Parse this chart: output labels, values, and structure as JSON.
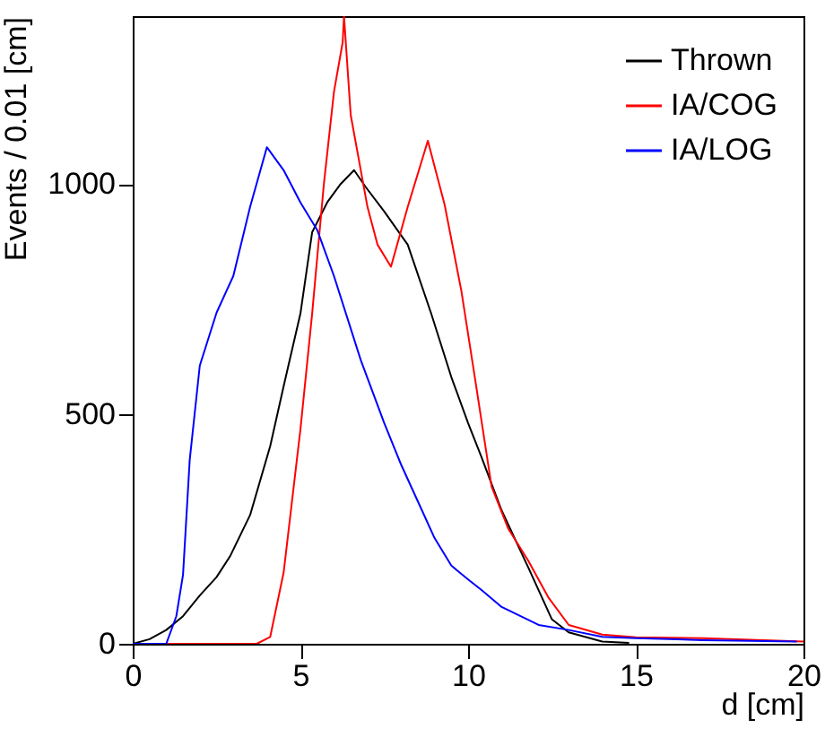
{
  "chart_data": {
    "type": "line",
    "xlabel": "d [cm]",
    "ylabel": "Events / 0.01 [cm]",
    "xlim": [
      0,
      20
    ],
    "ylim": [
      0,
      1365
    ],
    "xticks": [
      0,
      5,
      10,
      15,
      20
    ],
    "yticks": [
      0,
      500,
      {
        "value": 1000,
        "label": "1000"
      }
    ],
    "grid": false,
    "legend": "top right",
    "marker": "none",
    "line_style": "solid",
    "series": [
      {
        "name": "Thrown",
        "color": "#000000",
        "x": [
          0,
          0.5,
          1,
          1.5,
          2,
          2.5,
          2.9,
          3.5,
          4.1,
          4.5,
          5,
          5.35,
          5.8,
          6.2,
          6.6,
          6.95,
          7.5,
          8.2,
          8.9,
          9.5,
          10,
          10.4,
          11,
          11.8,
          12.5,
          13,
          14,
          14.8
        ],
        "values": [
          0,
          10,
          30,
          60,
          105,
          145,
          190,
          280,
          430,
          560,
          718,
          895,
          960,
          1000,
          1030,
          993,
          940,
          868,
          718,
          580,
          480,
          406,
          290,
          165,
          53,
          25,
          5,
          2
        ]
      },
      {
        "name": "IA/COG",
        "color": "#ff0000",
        "x": [
          0,
          3.7,
          4.1,
          4.5,
          5,
          5.35,
          5.7,
          6,
          6.26,
          6.3,
          6.5,
          7,
          7.3,
          7.7,
          8.2,
          8.8,
          9.3,
          9.8,
          10.2,
          10.7,
          11.2,
          11.8,
          12.4,
          13,
          14,
          15,
          17,
          20
        ],
        "values": [
          0,
          0,
          15,
          155,
          466,
          718,
          1000,
          1200,
          1308,
          1365,
          1150,
          950,
          868,
          820,
          950,
          1094,
          955,
          767,
          580,
          342,
          250,
          180,
          100,
          41,
          20,
          14,
          12,
          5
        ]
      },
      {
        "name": "IA/LOG",
        "color": "#0000ff",
        "x": [
          0,
          1,
          1.3,
          1.5,
          1.7,
          2,
          2.5,
          3,
          3.5,
          4,
          4.5,
          5,
          5.5,
          6,
          6.8,
          7.5,
          8,
          8.5,
          9,
          9.5,
          10,
          10.4,
          11,
          12.1,
          13,
          14,
          15,
          17,
          19.8
        ],
        "values": [
          0,
          0,
          60,
          150,
          400,
          605,
          720,
          800,
          950,
          1080,
          1030,
          960,
          900,
          800,
          617,
          480,
          390,
          310,
          230,
          170,
          140,
          117,
          80,
          41,
          30,
          15,
          12,
          8,
          5
        ]
      }
    ]
  }
}
